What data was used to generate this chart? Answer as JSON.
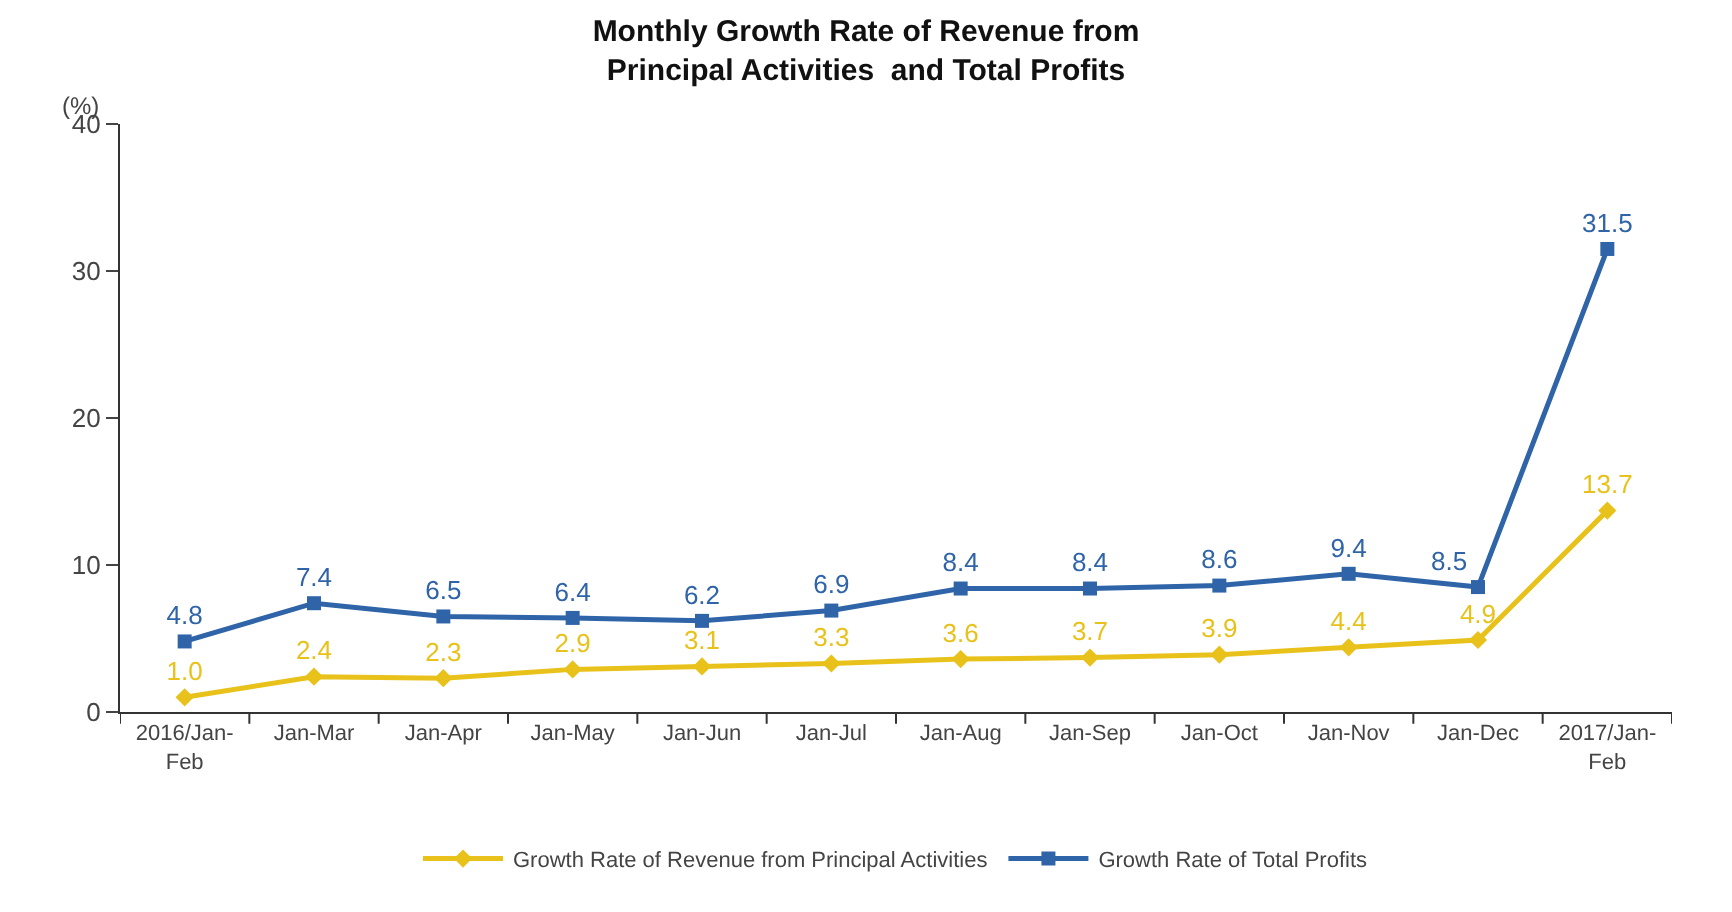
{
  "chart_data": {
    "type": "line",
    "title": "Monthly Growth Rate of Revenue from Principal Activities  and Total Profits",
    "ylabel": "(%)",
    "categories": [
      "2016/Jan-Feb",
      "Jan-Mar",
      "Jan-Apr",
      "Jan-May",
      "Jan-Jun",
      "Jan-Jul",
      "Jan-Aug",
      "Jan-Sep",
      "Jan-Oct",
      "Jan-Nov",
      "Jan-Dec",
      "2017/Jan-Feb"
    ],
    "series": [
      {
        "name": "Growth Rate of Revenue from Principal Activities",
        "color": "#e8c21a",
        "marker": "diamond",
        "values": [
          1.0,
          2.4,
          2.3,
          2.9,
          3.1,
          3.3,
          3.6,
          3.7,
          3.9,
          4.4,
          4.9,
          13.7
        ],
        "value_labels": [
          "1.0",
          "2.4",
          "2.3",
          "2.9",
          "3.1",
          "3.3",
          "3.6",
          "3.7",
          "3.9",
          "4.4",
          "4.9",
          "13.7"
        ]
      },
      {
        "name": "Growth Rate of Total Profits",
        "color": "#2f64a8",
        "marker": "square",
        "values": [
          4.8,
          7.4,
          6.5,
          6.4,
          6.2,
          6.9,
          8.4,
          8.4,
          8.6,
          9.4,
          8.5,
          31.5
        ]
      }
    ],
    "ylim": [
      0,
      40
    ],
    "yticks": [
      0,
      10,
      20,
      30,
      40
    ],
    "grid": false,
    "legend": "bottom",
    "data_labels": true,
    "line_style": "solid"
  }
}
